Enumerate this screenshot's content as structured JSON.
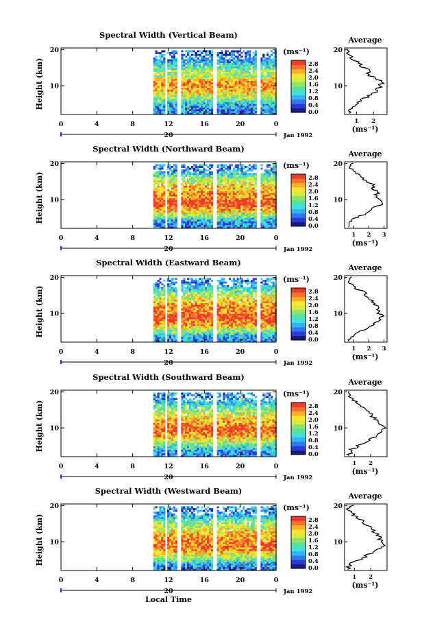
{
  "figure": {
    "x_axis_title": "Local Time",
    "x_ticks": [
      "0",
      "4",
      "8",
      "12",
      "16",
      "20",
      "0"
    ],
    "date_mark_label": "20",
    "date_suffix": "Jan 1992",
    "time_range_hours": [
      0,
      24
    ],
    "data_start_hour": 10.3,
    "y_axis_title": "Height (km)",
    "y_ticks": [
      "10",
      "20"
    ],
    "y_range_km": [
      2,
      20.5
    ],
    "colorbar_unit": "(ms⁻¹)",
    "colorbar_ticks": [
      "2.8",
      "2.4",
      "2.0",
      "1.6",
      "1.2",
      "0.8",
      "0.4",
      "0.0"
    ],
    "colormap": [
      "#1a1a7a",
      "#2b3ad6",
      "#2f78f0",
      "#33b4f5",
      "#3fe0e0",
      "#58e2a0",
      "#8ee36a",
      "#d6ec3c",
      "#fbe52e",
      "#fbb02a",
      "#f8722a",
      "#ee3b2a"
    ],
    "average_title": "Average",
    "average_unit": "(ms⁻¹)",
    "gap_hours": [
      11.6,
      13.1,
      17.1,
      21.9
    ]
  },
  "chart_data": [
    {
      "type": "heatmap",
      "title": "Spectral Width (Vertical Beam)",
      "xlabel": "",
      "ylabel": "Height (km)",
      "xlim": [
        0,
        24
      ],
      "ylim": [
        2,
        20.5
      ],
      "colorbar_range": [
        0,
        3.0
      ],
      "average_profile": {
        "xlim": [
          0.3,
          2.8
        ],
        "x_ticks": [
          "1",
          "2"
        ],
        "x_tick_values": [
          1,
          2
        ],
        "height_km": [
          2.5,
          4,
          5,
          6,
          7,
          8,
          9,
          10,
          11,
          12,
          13,
          14,
          15,
          16,
          17,
          18,
          19,
          20
        ],
        "width_ms": [
          0.6,
          0.75,
          0.95,
          1.3,
          1.7,
          2.0,
          2.3,
          2.35,
          2.6,
          2.2,
          1.7,
          1.8,
          1.4,
          1.2,
          0.9,
          0.7,
          0.5,
          0.6
        ]
      }
    },
    {
      "type": "heatmap",
      "title": "Spectral Width (Northward Beam)",
      "xlabel": "",
      "ylabel": "Height (km)",
      "xlim": [
        0,
        24
      ],
      "ylim": [
        2,
        20.5
      ],
      "colorbar_range": [
        0,
        3.0
      ],
      "average_profile": {
        "xlim": [
          0.4,
          3.2
        ],
        "x_ticks": [
          "1",
          "2",
          "3"
        ],
        "x_tick_values": [
          1,
          2,
          3
        ],
        "height_km": [
          2.5,
          4,
          5,
          6,
          7,
          8,
          9,
          10,
          11,
          12,
          13,
          14,
          15,
          16,
          17,
          18,
          19,
          20
        ],
        "width_ms": [
          0.7,
          0.8,
          1.2,
          1.8,
          2.2,
          2.5,
          2.9,
          2.8,
          2.4,
          2.6,
          2.2,
          2.3,
          1.8,
          1.7,
          1.3,
          0.9,
          0.7,
          0.9
        ]
      }
    },
    {
      "type": "heatmap",
      "title": "Spectral Width (Eastward Beam)",
      "xlabel": "",
      "ylabel": "Height (km)",
      "xlim": [
        0,
        24
      ],
      "ylim": [
        2,
        20.5
      ],
      "colorbar_range": [
        0,
        3.0
      ],
      "average_profile": {
        "xlim": [
          0.4,
          3.2
        ],
        "x_ticks": [
          "1",
          "2",
          "3"
        ],
        "x_tick_values": [
          1,
          2,
          3
        ],
        "height_km": [
          2.5,
          4,
          5,
          6,
          7,
          8,
          9,
          10,
          11,
          12,
          13,
          14,
          15,
          16,
          17,
          18,
          19,
          20
        ],
        "width_ms": [
          0.7,
          0.9,
          1.4,
          1.9,
          2.3,
          2.6,
          2.9,
          2.7,
          2.5,
          2.6,
          2.3,
          2.1,
          1.9,
          1.6,
          1.2,
          0.9,
          0.6,
          0.9
        ]
      }
    },
    {
      "type": "heatmap",
      "title": "Spectral Width (Southward Beam)",
      "xlabel": "",
      "ylabel": "Height (km)",
      "xlim": [
        0,
        24
      ],
      "ylim": [
        2,
        20.5
      ],
      "colorbar_range": [
        0,
        3.0
      ],
      "average_profile": {
        "xlim": [
          0.4,
          3.0
        ],
        "x_ticks": [
          "1",
          "2"
        ],
        "x_tick_values": [
          1,
          2
        ],
        "height_km": [
          2.5,
          4,
          5,
          6,
          7,
          8,
          9,
          10,
          11,
          12,
          13,
          14,
          15,
          16,
          17,
          18,
          19,
          20
        ],
        "width_ms": [
          0.7,
          0.85,
          1.2,
          1.6,
          2.0,
          2.4,
          2.7,
          2.8,
          2.6,
          2.4,
          2.2,
          1.9,
          1.7,
          1.4,
          1.1,
          0.9,
          0.6,
          0.8
        ]
      }
    },
    {
      "type": "heatmap",
      "title": "Spectral Width (Westward Beam)",
      "xlabel": "",
      "ylabel": "Height (km)",
      "xlim": [
        0,
        24
      ],
      "ylim": [
        2,
        20.5
      ],
      "colorbar_range": [
        0,
        3.0
      ],
      "average_profile": {
        "xlim": [
          0.4,
          3.0
        ],
        "x_ticks": [
          "1",
          "2"
        ],
        "x_tick_values": [
          1,
          2
        ],
        "height_km": [
          2.5,
          4,
          5,
          6,
          7,
          8,
          9,
          10,
          11,
          12,
          13,
          14,
          15,
          16,
          17,
          18,
          19,
          20
        ],
        "width_ms": [
          0.6,
          0.8,
          1.3,
          1.7,
          2.1,
          2.5,
          2.7,
          2.6,
          2.5,
          2.4,
          2.2,
          1.9,
          1.7,
          1.4,
          1.1,
          0.8,
          0.6,
          0.9
        ]
      }
    }
  ]
}
